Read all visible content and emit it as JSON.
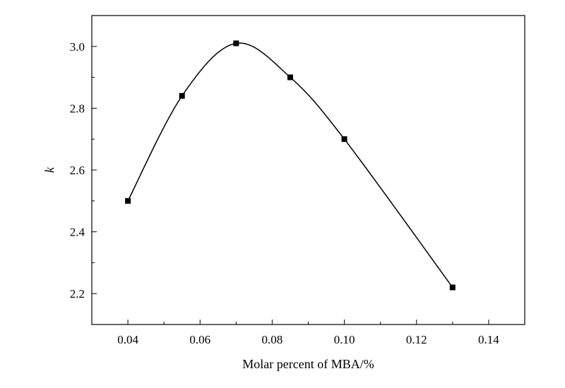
{
  "chart_data": {
    "type": "line",
    "title": "",
    "xlabel": "Molar percent of MBA/%",
    "ylabel": "k",
    "xlim": [
      0.03,
      0.15
    ],
    "ylim": [
      2.1,
      3.1
    ],
    "x_major_ticks": [
      0.04,
      0.06,
      0.08,
      0.1,
      0.12,
      0.14
    ],
    "x_tick_labels": [
      "0.04",
      "0.06",
      "0.08",
      "0.10",
      "0.12",
      "0.14"
    ],
    "y_major_ticks": [
      2.2,
      2.4,
      2.6,
      2.8,
      3.0
    ],
    "y_tick_labels": [
      "2.2",
      "2.4",
      "2.6",
      "2.8",
      "3.0"
    ],
    "grid": false,
    "legend": "none",
    "marker": "square",
    "line_style": "smooth",
    "colors": {
      "line": "#000000",
      "marker": "#000000"
    },
    "series": [
      {
        "x": [
          0.04,
          0.055,
          0.07,
          0.085,
          0.1,
          0.13
        ],
        "y": [
          2.5,
          2.84,
          3.01,
          2.9,
          2.7,
          2.22
        ]
      }
    ]
  }
}
